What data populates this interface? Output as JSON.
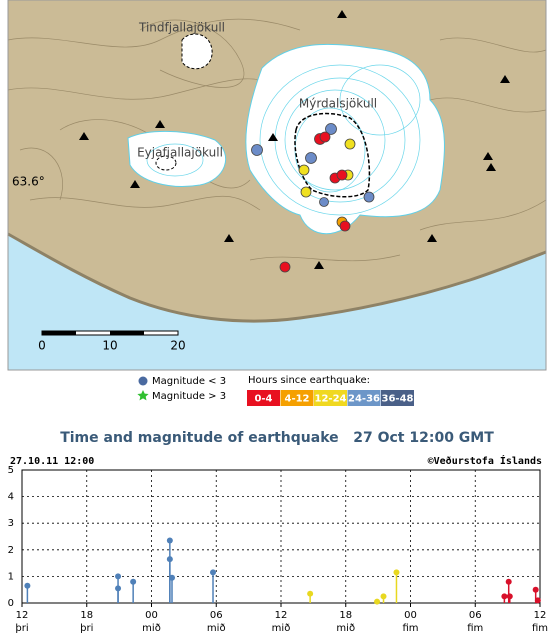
{
  "map": {
    "labels": [
      "Tindfjallajökull",
      "Mýrdalsjökull",
      "Eyjafjallajökull"
    ],
    "latitude": "63.6°",
    "scale": [
      "0",
      "10",
      "20"
    ]
  },
  "legend": {
    "magnitude": [
      "Magnitude < 3",
      "Magnitude > 3"
    ],
    "hours_title": "Hours since earthquake:",
    "hours": [
      "0-4",
      "4-12",
      "12-24",
      "24-36",
      "36-48"
    ]
  },
  "chart_data": {
    "type": "stem",
    "title": "Time and magnitude of earthquake   27 Oct 12:00 GMT",
    "timestamp": "27.10.11 12:00",
    "credit": "©Veðurstofa Íslands",
    "x": [
      0.5,
      8.9,
      8.9,
      10.3,
      13.7,
      13.7,
      13.9,
      17.7,
      26.7,
      32.9,
      33.5,
      34.7,
      44.7,
      45.1,
      45.2,
      47.6,
      47.8
    ],
    "values": [
      0.65,
      1.0,
      0.55,
      0.8,
      2.35,
      1.65,
      0.95,
      1.15,
      0.35,
      0.05,
      0.25,
      1.15,
      0.25,
      0.8,
      0.25,
      0.5,
      0.1
    ],
    "point_colors": [
      "#4f80b8",
      "#4f80b8",
      "#4f80b8",
      "#4f80b8",
      "#4f80b8",
      "#4f80b8",
      "#4f80b8",
      "#4f80b8",
      "#e8d820",
      "#e8d820",
      "#e8d820",
      "#e8d820",
      "#d8102a",
      "#d8102a",
      "#d8102a",
      "#d8102a",
      "#d8102a"
    ],
    "xlim": [
      0,
      48
    ],
    "ylim": [
      0,
      5
    ],
    "yticks": [
      0,
      1,
      2,
      3,
      4,
      5
    ],
    "xticks": [
      {
        "value": 0,
        "label": "12"
      },
      {
        "value": 6,
        "label": "18"
      },
      {
        "value": 12,
        "label": "00"
      },
      {
        "value": 18,
        "label": "06"
      },
      {
        "value": 24,
        "label": "12"
      },
      {
        "value": 30,
        "label": "18"
      },
      {
        "value": 36,
        "label": "00"
      },
      {
        "value": 42,
        "label": "06"
      },
      {
        "value": 48,
        "label": "12"
      }
    ],
    "xtick_days": [
      "þri",
      "þri",
      "mið",
      "mið",
      "mið",
      "mið",
      "fim",
      "fim",
      "fim"
    ],
    "grid": true
  }
}
